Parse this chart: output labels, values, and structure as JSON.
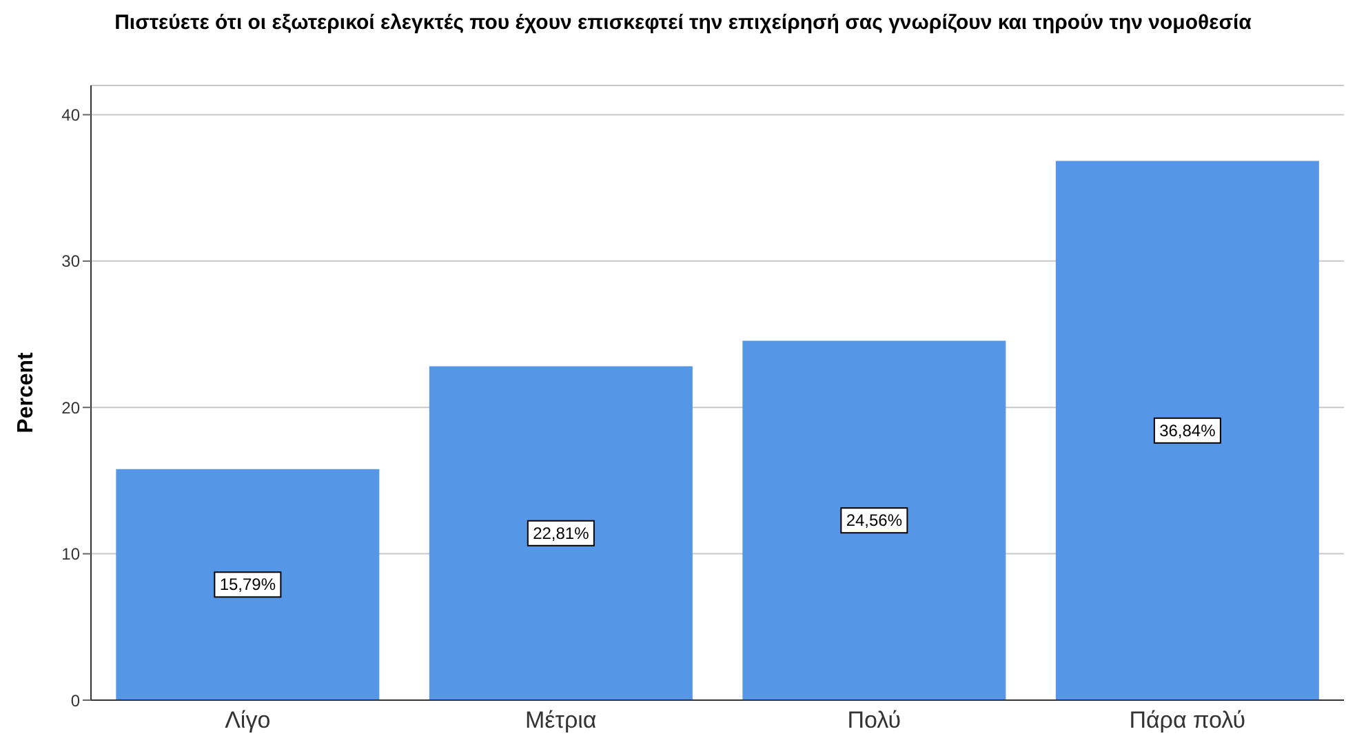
{
  "chart_data": {
    "type": "bar",
    "title": "Πιστεύετε ότι οι εξωτερικοί ελεγκτές που έχουν επισκεφτεί την επιχείρησή σας γνωρίζουν και τηρούν την νομοθεσία",
    "ylabel": "Percent",
    "categories": [
      "Λίγο",
      "Μέτρια",
      "Πολύ",
      "Πάρα πολύ"
    ],
    "values": [
      15.79,
      22.81,
      24.56,
      36.84
    ],
    "value_labels": [
      "15,79%",
      "22,81%",
      "24,56%",
      "36,84%"
    ],
    "color": "#5596e6",
    "ylim": [
      0,
      42
    ],
    "yticks": [
      0,
      10,
      20,
      30,
      40
    ],
    "grid": "y"
  }
}
